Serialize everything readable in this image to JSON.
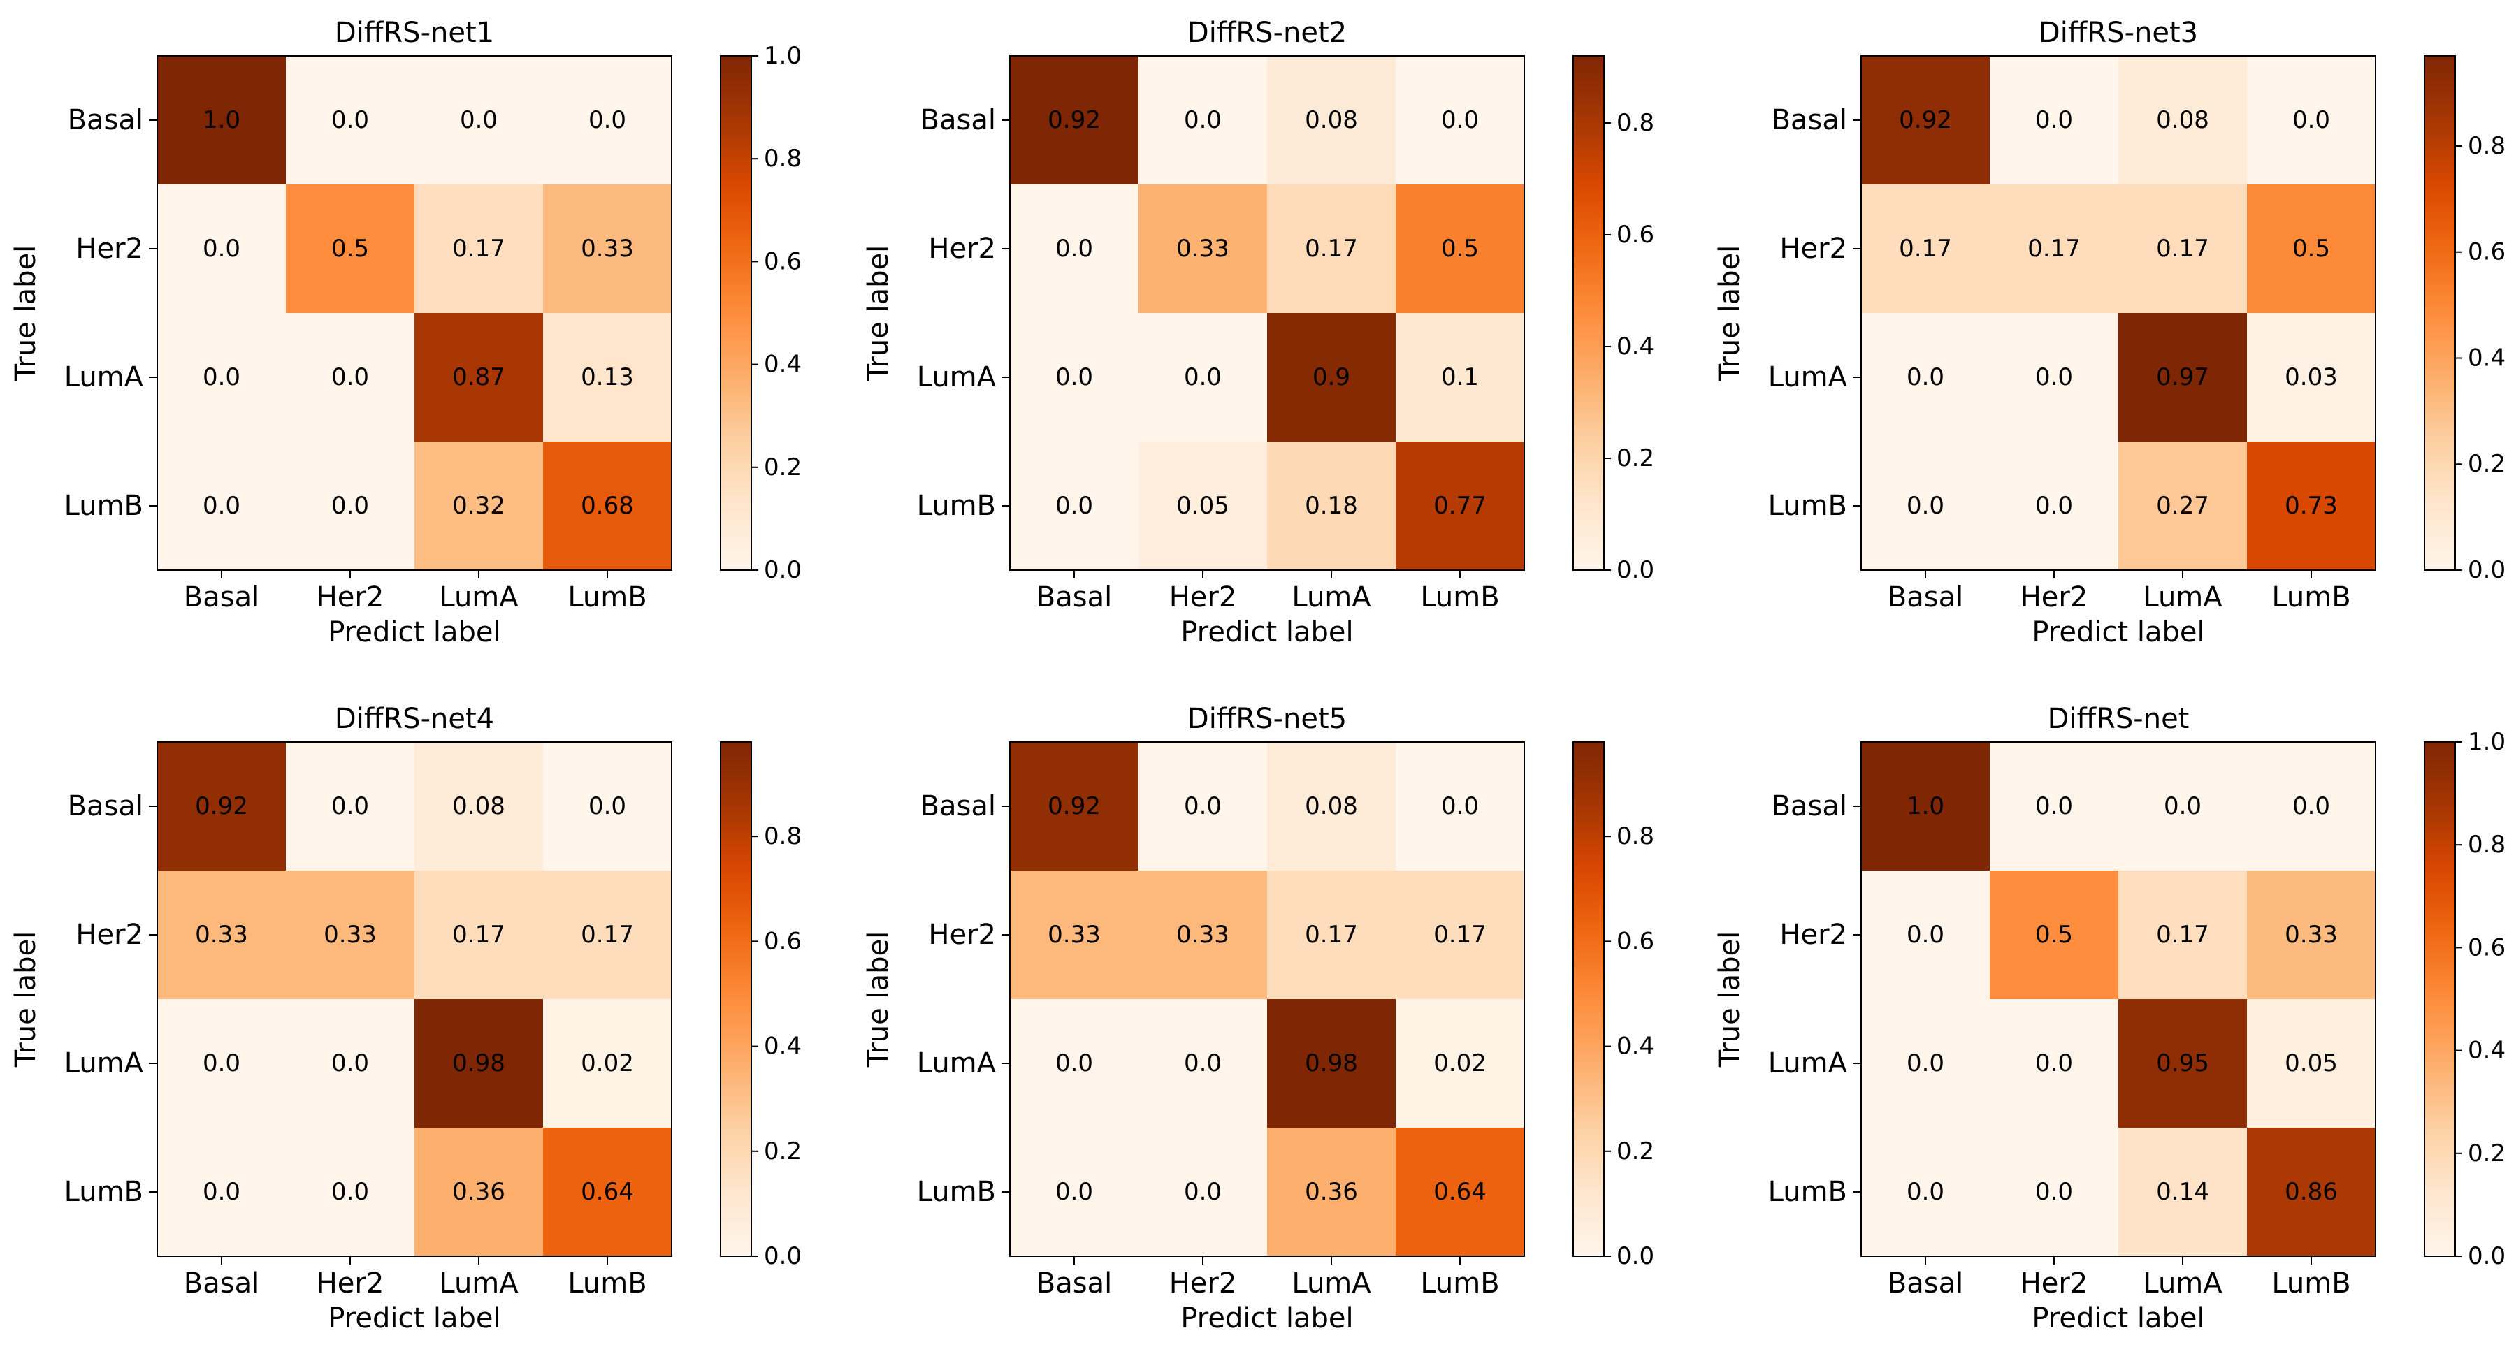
{
  "chart_data": [
    {
      "type": "heatmap",
      "title": "DiffRS-net1",
      "xlabel": "Predict label",
      "ylabel": "True label",
      "x_categories": [
        "Basal",
        "Her2",
        "LumA",
        "LumB"
      ],
      "y_categories": [
        "Basal",
        "Her2",
        "LumA",
        "LumB"
      ],
      "values": [
        [
          1.0,
          0.0,
          0.0,
          0.0
        ],
        [
          0.0,
          0.5,
          0.17,
          0.33
        ],
        [
          0.0,
          0.0,
          0.87,
          0.13
        ],
        [
          0.0,
          0.0,
          0.32,
          0.68
        ]
      ],
      "cell_labels": [
        [
          "1.0",
          "0.0",
          "0.0",
          "0.0"
        ],
        [
          "0.0",
          "0.5",
          "0.17",
          "0.33"
        ],
        [
          "0.0",
          "0.0",
          "0.87",
          "0.13"
        ],
        [
          "0.0",
          "0.0",
          "0.32",
          "0.68"
        ]
      ],
      "colorbar": {
        "range": [
          0.0,
          1.0
        ],
        "ticks": [
          "0.0",
          "0.2",
          "0.4",
          "0.6",
          "0.8",
          "1.0"
        ]
      }
    },
    {
      "type": "heatmap",
      "title": "DiffRS-net2",
      "xlabel": "Predict label",
      "ylabel": "True label",
      "x_categories": [
        "Basal",
        "Her2",
        "LumA",
        "LumB"
      ],
      "y_categories": [
        "Basal",
        "Her2",
        "LumA",
        "LumB"
      ],
      "values": [
        [
          0.92,
          0.0,
          0.08,
          0.0
        ],
        [
          0.0,
          0.33,
          0.17,
          0.5
        ],
        [
          0.0,
          0.0,
          0.9,
          0.1
        ],
        [
          0.0,
          0.05,
          0.18,
          0.77
        ]
      ],
      "cell_labels": [
        [
          "0.92",
          "0.0",
          "0.08",
          "0.0"
        ],
        [
          "0.0",
          "0.33",
          "0.17",
          "0.5"
        ],
        [
          "0.0",
          "0.0",
          "0.9",
          "0.1"
        ],
        [
          "0.0",
          "0.05",
          "0.18",
          "0.77"
        ]
      ],
      "colorbar": {
        "range": [
          0.0,
          0.92
        ],
        "ticks": [
          "0.0",
          "0.2",
          "0.4",
          "0.6",
          "0.8"
        ]
      }
    },
    {
      "type": "heatmap",
      "title": "DiffRS-net3",
      "xlabel": "Predict label",
      "ylabel": "True label",
      "x_categories": [
        "Basal",
        "Her2",
        "LumA",
        "LumB"
      ],
      "y_categories": [
        "Basal",
        "Her2",
        "LumA",
        "LumB"
      ],
      "values": [
        [
          0.92,
          0.0,
          0.08,
          0.0
        ],
        [
          0.17,
          0.17,
          0.17,
          0.5
        ],
        [
          0.0,
          0.0,
          0.97,
          0.03
        ],
        [
          0.0,
          0.0,
          0.27,
          0.73
        ]
      ],
      "cell_labels": [
        [
          "0.92",
          "0.0",
          "0.08",
          "0.0"
        ],
        [
          "0.17",
          "0.17",
          "0.17",
          "0.5"
        ],
        [
          "0.0",
          "0.0",
          "0.97",
          "0.03"
        ],
        [
          "0.0",
          "0.0",
          "0.27",
          "0.73"
        ]
      ],
      "colorbar": {
        "range": [
          0.0,
          0.97
        ],
        "ticks": [
          "0.0",
          "0.2",
          "0.4",
          "0.6",
          "0.8"
        ]
      }
    },
    {
      "type": "heatmap",
      "title": "DiffRS-net4",
      "xlabel": "Predict label",
      "ylabel": "True label",
      "x_categories": [
        "Basal",
        "Her2",
        "LumA",
        "LumB"
      ],
      "y_categories": [
        "Basal",
        "Her2",
        "LumA",
        "LumB"
      ],
      "values": [
        [
          0.92,
          0.0,
          0.08,
          0.0
        ],
        [
          0.33,
          0.33,
          0.17,
          0.17
        ],
        [
          0.0,
          0.0,
          0.98,
          0.02
        ],
        [
          0.0,
          0.0,
          0.36,
          0.64
        ]
      ],
      "cell_labels": [
        [
          "0.92",
          "0.0",
          "0.08",
          "0.0"
        ],
        [
          "0.33",
          "0.33",
          "0.17",
          "0.17"
        ],
        [
          "0.0",
          "0.0",
          "0.98",
          "0.02"
        ],
        [
          "0.0",
          "0.0",
          "0.36",
          "0.64"
        ]
      ],
      "colorbar": {
        "range": [
          0.0,
          0.98
        ],
        "ticks": [
          "0.0",
          "0.2",
          "0.4",
          "0.6",
          "0.8"
        ]
      }
    },
    {
      "type": "heatmap",
      "title": "DiffRS-net5",
      "xlabel": "Predict label",
      "ylabel": "True label",
      "x_categories": [
        "Basal",
        "Her2",
        "LumA",
        "LumB"
      ],
      "y_categories": [
        "Basal",
        "Her2",
        "LumA",
        "LumB"
      ],
      "values": [
        [
          0.92,
          0.0,
          0.08,
          0.0
        ],
        [
          0.33,
          0.33,
          0.17,
          0.17
        ],
        [
          0.0,
          0.0,
          0.98,
          0.02
        ],
        [
          0.0,
          0.0,
          0.36,
          0.64
        ]
      ],
      "cell_labels": [
        [
          "0.92",
          "0.0",
          "0.08",
          "0.0"
        ],
        [
          "0.33",
          "0.33",
          "0.17",
          "0.17"
        ],
        [
          "0.0",
          "0.0",
          "0.98",
          "0.02"
        ],
        [
          "0.0",
          "0.0",
          "0.36",
          "0.64"
        ]
      ],
      "colorbar": {
        "range": [
          0.0,
          0.98
        ],
        "ticks": [
          "0.0",
          "0.2",
          "0.4",
          "0.6",
          "0.8"
        ]
      }
    },
    {
      "type": "heatmap",
      "title": "DiffRS-net",
      "xlabel": "Predict label",
      "ylabel": "True label",
      "x_categories": [
        "Basal",
        "Her2",
        "LumA",
        "LumB"
      ],
      "y_categories": [
        "Basal",
        "Her2",
        "LumA",
        "LumB"
      ],
      "values": [
        [
          1.0,
          0.0,
          0.0,
          0.0
        ],
        [
          0.0,
          0.5,
          0.17,
          0.33
        ],
        [
          0.0,
          0.0,
          0.95,
          0.05
        ],
        [
          0.0,
          0.0,
          0.14,
          0.86
        ]
      ],
      "cell_labels": [
        [
          "1.0",
          "0.0",
          "0.0",
          "0.0"
        ],
        [
          "0.0",
          "0.5",
          "0.17",
          "0.33"
        ],
        [
          "0.0",
          "0.0",
          "0.95",
          "0.05"
        ],
        [
          "0.0",
          "0.0",
          "0.14",
          "0.86"
        ]
      ],
      "colorbar": {
        "range": [
          0.0,
          1.0
        ],
        "ticks": [
          "0.0",
          "0.2",
          "0.4",
          "0.6",
          "0.8",
          "1.0"
        ]
      }
    }
  ],
  "colormap": {
    "name": "Oranges",
    "stops": [
      "#fff5eb",
      "#fee6ce",
      "#fdd0a2",
      "#fdae6b",
      "#fd8d3c",
      "#f16913",
      "#d94801",
      "#a63603",
      "#7f2704"
    ]
  }
}
